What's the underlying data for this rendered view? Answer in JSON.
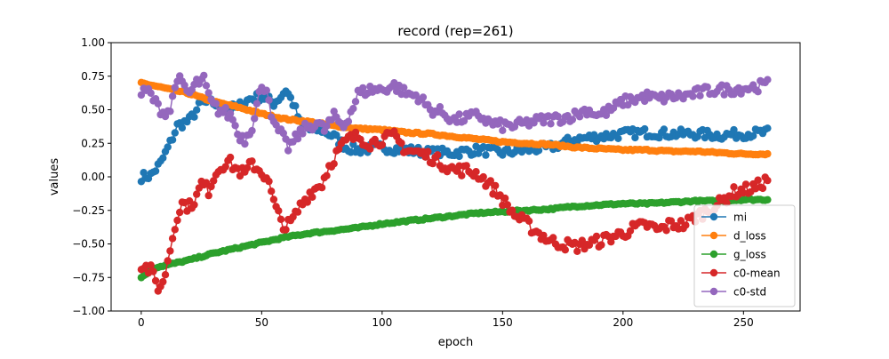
{
  "chart_data": {
    "type": "line",
    "title": "record (rep=261)",
    "xlabel": "epoch",
    "ylabel": "values",
    "xlim": [
      -12.5,
      273.5
    ],
    "ylim": [
      -1.0,
      1.0
    ],
    "xticks": [
      0,
      50,
      100,
      150,
      200,
      250
    ],
    "xtick_labels": [
      "0",
      "50",
      "100",
      "150",
      "200",
      "250"
    ],
    "yticks": [
      -1.0,
      -0.75,
      -0.5,
      -0.25,
      0.0,
      0.25,
      0.5,
      0.75,
      1.0
    ],
    "ytick_labels": [
      "−1.00",
      "−0.75",
      "−0.50",
      "−0.25",
      "0.00",
      "0.25",
      "0.50",
      "0.75",
      "1.00"
    ],
    "grid": false,
    "legend_position": "lower-right",
    "x_range": [
      0,
      260
    ],
    "series": [
      {
        "name": "mi",
        "color": "#1f77b4",
        "anchors": [
          [
            0,
            0.0
          ],
          [
            4,
            0.01
          ],
          [
            8,
            0.1
          ],
          [
            12,
            0.25
          ],
          [
            15,
            0.38
          ],
          [
            20,
            0.42
          ],
          [
            25,
            0.55
          ],
          [
            30,
            0.55
          ],
          [
            35,
            0.5
          ],
          [
            40,
            0.52
          ],
          [
            45,
            0.58
          ],
          [
            50,
            0.6
          ],
          [
            55,
            0.55
          ],
          [
            58,
            0.6
          ],
          [
            60,
            0.65
          ],
          [
            63,
            0.55
          ],
          [
            66,
            0.4
          ],
          [
            70,
            0.35
          ],
          [
            75,
            0.35
          ],
          [
            80,
            0.3
          ],
          [
            85,
            0.22
          ],
          [
            90,
            0.2
          ],
          [
            100,
            0.22
          ],
          [
            110,
            0.2
          ],
          [
            120,
            0.18
          ],
          [
            130,
            0.18
          ],
          [
            140,
            0.2
          ],
          [
            150,
            0.18
          ],
          [
            160,
            0.2
          ],
          [
            170,
            0.22
          ],
          [
            180,
            0.28
          ],
          [
            190,
            0.3
          ],
          [
            200,
            0.32
          ],
          [
            210,
            0.33
          ],
          [
            220,
            0.32
          ],
          [
            230,
            0.32
          ],
          [
            240,
            0.31
          ],
          [
            250,
            0.32
          ],
          [
            260,
            0.33
          ]
        ]
      },
      {
        "name": "d_loss",
        "color": "#ff7f0e",
        "anchors": [
          [
            0,
            0.7
          ],
          [
            10,
            0.66
          ],
          [
            20,
            0.62
          ],
          [
            30,
            0.56
          ],
          [
            40,
            0.52
          ],
          [
            50,
            0.47
          ],
          [
            60,
            0.43
          ],
          [
            70,
            0.41
          ],
          [
            80,
            0.38
          ],
          [
            90,
            0.36
          ],
          [
            100,
            0.35
          ],
          [
            110,
            0.33
          ],
          [
            120,
            0.32
          ],
          [
            130,
            0.3
          ],
          [
            140,
            0.28
          ],
          [
            150,
            0.26
          ],
          [
            160,
            0.25
          ],
          [
            170,
            0.24
          ],
          [
            180,
            0.22
          ],
          [
            190,
            0.21
          ],
          [
            200,
            0.2
          ],
          [
            210,
            0.2
          ],
          [
            220,
            0.19
          ],
          [
            230,
            0.19
          ],
          [
            240,
            0.18
          ],
          [
            250,
            0.17
          ],
          [
            260,
            0.17
          ]
        ]
      },
      {
        "name": "g_loss",
        "color": "#2ca02c",
        "anchors": [
          [
            0,
            -0.75
          ],
          [
            5,
            -0.68
          ],
          [
            10,
            -0.66
          ],
          [
            20,
            -0.62
          ],
          [
            30,
            -0.57
          ],
          [
            40,
            -0.53
          ],
          [
            50,
            -0.49
          ],
          [
            60,
            -0.45
          ],
          [
            70,
            -0.42
          ],
          [
            80,
            -0.4
          ],
          [
            90,
            -0.38
          ],
          [
            100,
            -0.35
          ],
          [
            110,
            -0.33
          ],
          [
            120,
            -0.31
          ],
          [
            130,
            -0.29
          ],
          [
            140,
            -0.27
          ],
          [
            150,
            -0.26
          ],
          [
            160,
            -0.25
          ],
          [
            170,
            -0.24
          ],
          [
            180,
            -0.22
          ],
          [
            190,
            -0.21
          ],
          [
            200,
            -0.2
          ],
          [
            210,
            -0.2
          ],
          [
            220,
            -0.19
          ],
          [
            230,
            -0.18
          ],
          [
            240,
            -0.18
          ],
          [
            250,
            -0.17
          ],
          [
            260,
            -0.17
          ]
        ]
      },
      {
        "name": "c0-mean",
        "color": "#d62728",
        "anchors": [
          [
            0,
            -0.65
          ],
          [
            4,
            -0.7
          ],
          [
            7,
            -0.82
          ],
          [
            9,
            -0.8
          ],
          [
            11,
            -0.62
          ],
          [
            13,
            -0.45
          ],
          [
            15,
            -0.28
          ],
          [
            17,
            -0.2
          ],
          [
            20,
            -0.22
          ],
          [
            23,
            -0.15
          ],
          [
            25,
            -0.05
          ],
          [
            28,
            -0.1
          ],
          [
            30,
            0.0
          ],
          [
            33,
            0.08
          ],
          [
            36,
            0.12
          ],
          [
            40,
            0.05
          ],
          [
            43,
            0.02
          ],
          [
            46,
            0.1
          ],
          [
            49,
            0.05
          ],
          [
            52,
            0.0
          ],
          [
            54,
            -0.12
          ],
          [
            56,
            -0.25
          ],
          [
            58,
            -0.32
          ],
          [
            60,
            -0.38
          ],
          [
            63,
            -0.32
          ],
          [
            66,
            -0.22
          ],
          [
            70,
            -0.12
          ],
          [
            75,
            -0.05
          ],
          [
            78,
            0.08
          ],
          [
            82,
            0.2
          ],
          [
            86,
            0.28
          ],
          [
            90,
            0.3
          ],
          [
            95,
            0.25
          ],
          [
            100,
            0.28
          ],
          [
            105,
            0.3
          ],
          [
            110,
            0.2
          ],
          [
            115,
            0.18
          ],
          [
            120,
            0.15
          ],
          [
            125,
            0.1
          ],
          [
            130,
            0.05
          ],
          [
            135,
            0.05
          ],
          [
            140,
            0.02
          ],
          [
            144,
            -0.05
          ],
          [
            148,
            -0.12
          ],
          [
            152,
            -0.22
          ],
          [
            156,
            -0.3
          ],
          [
            160,
            -0.35
          ],
          [
            165,
            -0.42
          ],
          [
            170,
            -0.48
          ],
          [
            175,
            -0.5
          ],
          [
            180,
            -0.52
          ],
          [
            185,
            -0.5
          ],
          [
            190,
            -0.48
          ],
          [
            195,
            -0.45
          ],
          [
            200,
            -0.42
          ],
          [
            205,
            -0.38
          ],
          [
            210,
            -0.36
          ],
          [
            215,
            -0.4
          ],
          [
            220,
            -0.35
          ],
          [
            225,
            -0.36
          ],
          [
            230,
            -0.3
          ],
          [
            235,
            -0.25
          ],
          [
            240,
            -0.2
          ],
          [
            245,
            -0.12
          ],
          [
            250,
            -0.1
          ],
          [
            255,
            -0.08
          ],
          [
            260,
            -0.02
          ]
        ]
      },
      {
        "name": "c0-std",
        "color": "#9467bd",
        "anchors": [
          [
            0,
            0.62
          ],
          [
            3,
            0.64
          ],
          [
            6,
            0.55
          ],
          [
            9,
            0.48
          ],
          [
            12,
            0.5
          ],
          [
            15,
            0.75
          ],
          [
            17,
            0.68
          ],
          [
            20,
            0.62
          ],
          [
            23,
            0.7
          ],
          [
            26,
            0.72
          ],
          [
            29,
            0.55
          ],
          [
            32,
            0.5
          ],
          [
            35,
            0.48
          ],
          [
            38,
            0.44
          ],
          [
            40,
            0.32
          ],
          [
            43,
            0.28
          ],
          [
            46,
            0.38
          ],
          [
            49,
            0.62
          ],
          [
            52,
            0.68
          ],
          [
            55,
            0.38
          ],
          [
            58,
            0.32
          ],
          [
            61,
            0.22
          ],
          [
            64,
            0.28
          ],
          [
            67,
            0.35
          ],
          [
            70,
            0.38
          ],
          [
            73,
            0.4
          ],
          [
            76,
            0.35
          ],
          [
            80,
            0.45
          ],
          [
            84,
            0.38
          ],
          [
            88,
            0.52
          ],
          [
            90,
            0.62
          ],
          [
            95,
            0.65
          ],
          [
            100,
            0.65
          ],
          [
            105,
            0.68
          ],
          [
            110,
            0.62
          ],
          [
            115,
            0.6
          ],
          [
            120,
            0.5
          ],
          [
            125,
            0.48
          ],
          [
            130,
            0.42
          ],
          [
            135,
            0.44
          ],
          [
            140,
            0.46
          ],
          [
            145,
            0.4
          ],
          [
            150,
            0.38
          ],
          [
            155,
            0.38
          ],
          [
            160,
            0.4
          ],
          [
            165,
            0.42
          ],
          [
            170,
            0.43
          ],
          [
            175,
            0.44
          ],
          [
            180,
            0.46
          ],
          [
            185,
            0.5
          ],
          [
            190,
            0.46
          ],
          [
            195,
            0.5
          ],
          [
            200,
            0.56
          ],
          [
            205,
            0.58
          ],
          [
            210,
            0.6
          ],
          [
            215,
            0.58
          ],
          [
            220,
            0.6
          ],
          [
            225,
            0.6
          ],
          [
            230,
            0.62
          ],
          [
            235,
            0.64
          ],
          [
            240,
            0.65
          ],
          [
            245,
            0.65
          ],
          [
            250,
            0.66
          ],
          [
            255,
            0.67
          ],
          [
            260,
            0.69
          ]
        ]
      }
    ]
  }
}
